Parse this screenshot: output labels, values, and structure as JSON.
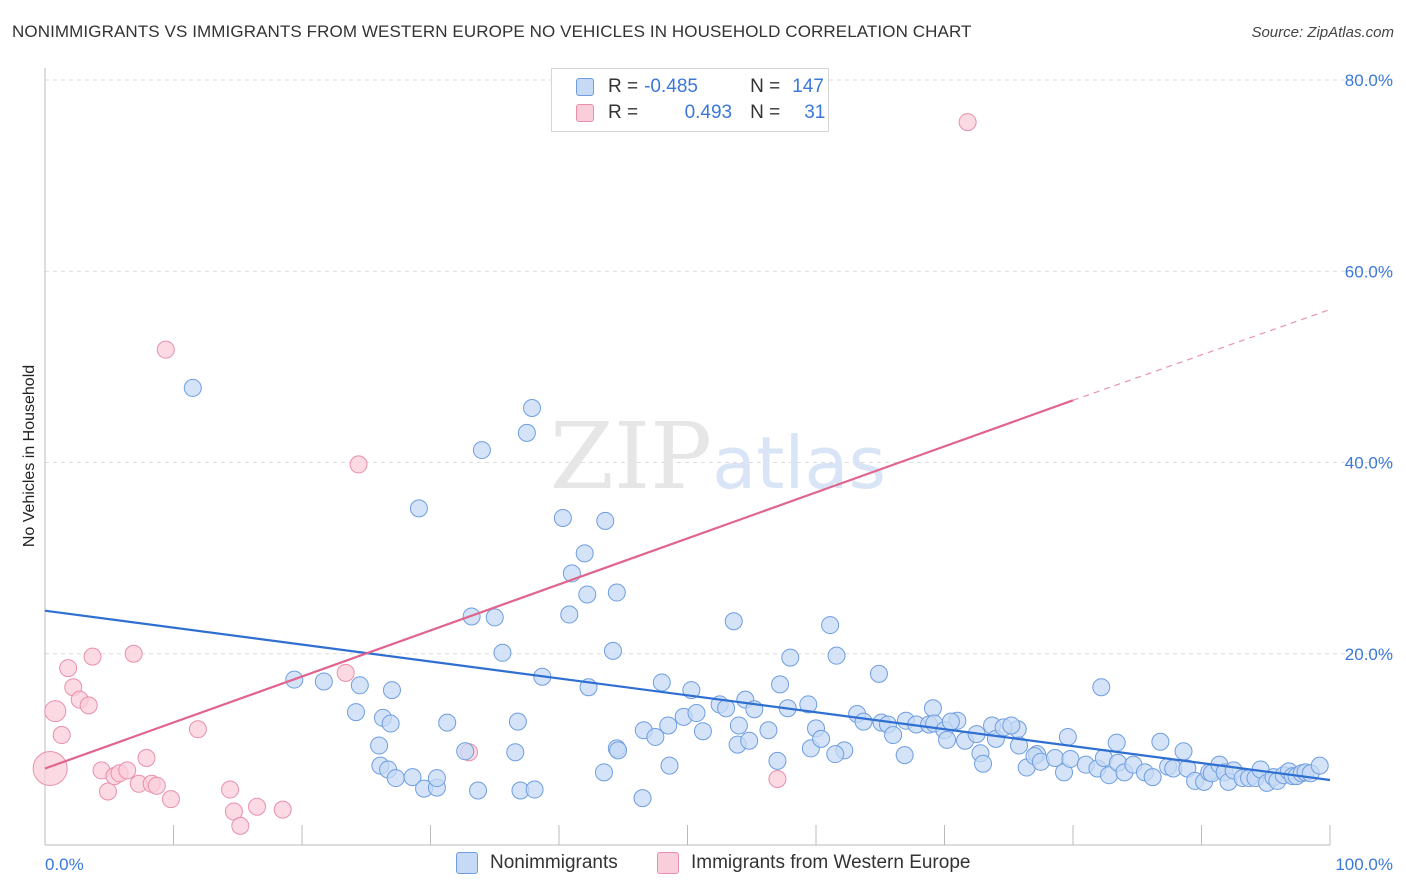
{
  "header": {
    "title": "NONIMMIGRANTS VS IMMIGRANTS FROM WESTERN EUROPE NO VEHICLES IN HOUSEHOLD CORRELATION CHART",
    "source": "Source: ZipAtlas.com"
  },
  "legend": {
    "series1": {
      "r_label": "R =",
      "r_value": "-0.485",
      "n_label": "N =",
      "n_value": "147"
    },
    "series2": {
      "r_label": "R =",
      "r_value": "0.493",
      "n_label": "N =",
      "n_value": "31"
    }
  },
  "watermark": {
    "part1": "ZIP",
    "part2": "atlas"
  },
  "colors": {
    "blue_fill": "#c6d9f5",
    "blue_stroke": "#6e9ee0",
    "blue_line": "#2f6fd1",
    "pink_fill": "#f9cdd9",
    "pink_stroke": "#e98fae",
    "pink_line": "#e0648e",
    "label_blue": "#3b78d8",
    "grid": "#dddddd"
  },
  "chart_data": {
    "type": "scatter",
    "title": "NONIMMIGRANTS VS IMMIGRANTS FROM WESTERN EUROPE NO VEHICLES IN HOUSEHOLD CORRELATION CHART",
    "xlabel": "",
    "ylabel": "No Vehicles in Household",
    "xlim": [
      0,
      100
    ],
    "ylim": [
      0,
      80
    ],
    "x_tick_labels": [
      "0.0%",
      "100.0%"
    ],
    "y_ticks": [
      20,
      40,
      60,
      80
    ],
    "y_tick_labels": [
      "20.0%",
      "40.0%",
      "60.0%",
      "80.0%"
    ],
    "grid": true,
    "series": [
      {
        "name": "Nonimmigrants",
        "r": -0.485,
        "n": 147,
        "trend": {
          "x0": 0,
          "y0": 24.5,
          "x1": 100,
          "y1": 6.8
        },
        "points": [
          [
            11.5,
            47.8
          ],
          [
            29.1,
            35.2
          ],
          [
            34.0,
            41.3
          ],
          [
            37.5,
            43.1
          ],
          [
            37.9,
            45.7
          ],
          [
            40.3,
            34.2
          ],
          [
            43.6,
            33.9
          ],
          [
            42.0,
            30.5
          ],
          [
            41.0,
            28.4
          ],
          [
            42.2,
            26.2
          ],
          [
            44.5,
            26.4
          ],
          [
            24.5,
            16.7
          ],
          [
            27.0,
            16.2
          ],
          [
            26.3,
            13.3
          ],
          [
            26.9,
            12.7
          ],
          [
            24.2,
            13.9
          ],
          [
            21.7,
            17.1
          ],
          [
            19.4,
            17.3
          ],
          [
            33.2,
            23.9
          ],
          [
            35.0,
            23.8
          ],
          [
            35.6,
            20.1
          ],
          [
            40.8,
            24.1
          ],
          [
            44.2,
            20.3
          ],
          [
            38.7,
            17.6
          ],
          [
            42.3,
            16.5
          ],
          [
            48.0,
            17.0
          ],
          [
            50.3,
            16.2
          ],
          [
            53.6,
            23.4
          ],
          [
            54.5,
            15.2
          ],
          [
            57.2,
            16.8
          ],
          [
            58.0,
            19.6
          ],
          [
            59.4,
            14.7
          ],
          [
            61.1,
            23.0
          ],
          [
            61.6,
            19.8
          ],
          [
            63.2,
            13.7
          ],
          [
            64.9,
            17.9
          ],
          [
            67.0,
            13.0
          ],
          [
            69.1,
            14.3
          ],
          [
            71.0,
            13.0
          ],
          [
            73.7,
            12.5
          ],
          [
            75.7,
            12.1
          ],
          [
            77.2,
            9.5
          ],
          [
            79.6,
            11.3
          ],
          [
            82.2,
            16.5
          ],
          [
            83.4,
            10.7
          ],
          [
            31.3,
            12.8
          ],
          [
            32.7,
            9.8
          ],
          [
            36.8,
            12.9
          ],
          [
            36.6,
            9.7
          ],
          [
            26.0,
            10.4
          ],
          [
            26.1,
            8.3
          ],
          [
            26.7,
            7.9
          ],
          [
            27.3,
            7.0
          ],
          [
            28.6,
            7.1
          ],
          [
            29.5,
            5.9
          ],
          [
            30.5,
            6.0
          ],
          [
            30.5,
            7.0
          ],
          [
            33.7,
            5.7
          ],
          [
            37.0,
            5.7
          ],
          [
            38.1,
            5.8
          ],
          [
            43.5,
            7.6
          ],
          [
            44.5,
            10.1
          ],
          [
            46.5,
            4.9
          ],
          [
            46.6,
            12.0
          ],
          [
            47.5,
            11.3
          ],
          [
            48.5,
            12.5
          ],
          [
            49.7,
            13.4
          ],
          [
            50.7,
            13.8
          ],
          [
            51.2,
            11.9
          ],
          [
            52.5,
            14.7
          ],
          [
            53.0,
            14.3
          ],
          [
            53.9,
            10.5
          ],
          [
            54.0,
            12.5
          ],
          [
            54.8,
            10.9
          ],
          [
            55.2,
            14.2
          ],
          [
            56.3,
            12.0
          ],
          [
            57.8,
            14.3
          ],
          [
            59.6,
            10.1
          ],
          [
            60.0,
            12.2
          ],
          [
            60.4,
            11.1
          ],
          [
            62.2,
            9.9
          ],
          [
            63.7,
            12.9
          ],
          [
            65.1,
            12.8
          ],
          [
            65.6,
            12.6
          ],
          [
            66.0,
            11.5
          ],
          [
            66.9,
            9.4
          ],
          [
            67.8,
            12.6
          ],
          [
            68.8,
            12.6
          ],
          [
            69.2,
            12.7
          ],
          [
            70.0,
            12.0
          ],
          [
            70.2,
            11.0
          ],
          [
            70.5,
            12.9
          ],
          [
            71.6,
            10.9
          ],
          [
            72.5,
            11.6
          ],
          [
            72.8,
            9.6
          ],
          [
            73.0,
            8.5
          ],
          [
            74.0,
            11.1
          ],
          [
            74.6,
            12.3
          ],
          [
            75.2,
            12.5
          ],
          [
            75.8,
            10.4
          ],
          [
            76.4,
            8.1
          ],
          [
            77.0,
            9.3
          ],
          [
            77.5,
            8.7
          ],
          [
            78.6,
            9.1
          ],
          [
            79.3,
            7.6
          ],
          [
            79.8,
            9.0
          ],
          [
            81.0,
            8.4
          ],
          [
            81.9,
            8.0
          ],
          [
            82.4,
            9.1
          ],
          [
            82.8,
            7.3
          ],
          [
            83.5,
            8.6
          ],
          [
            84.0,
            7.6
          ],
          [
            84.7,
            8.4
          ],
          [
            85.6,
            7.6
          ],
          [
            86.2,
            7.1
          ],
          [
            86.8,
            10.8
          ],
          [
            87.4,
            8.2
          ],
          [
            87.8,
            8.0
          ],
          [
            88.6,
            9.8
          ],
          [
            88.9,
            8.0
          ],
          [
            89.5,
            6.7
          ],
          [
            90.2,
            6.6
          ],
          [
            90.6,
            7.6
          ],
          [
            90.8,
            7.5
          ],
          [
            91.4,
            8.4
          ],
          [
            91.8,
            7.6
          ],
          [
            92.1,
            6.6
          ],
          [
            92.5,
            7.8
          ],
          [
            93.2,
            7.0
          ],
          [
            93.7,
            7.0
          ],
          [
            94.2,
            7.0
          ],
          [
            94.6,
            7.9
          ],
          [
            95.1,
            6.5
          ],
          [
            95.6,
            7.1
          ],
          [
            95.9,
            6.7
          ],
          [
            96.4,
            7.3
          ],
          [
            96.8,
            7.7
          ],
          [
            97.1,
            7.2
          ],
          [
            97.4,
            7.2
          ],
          [
            97.8,
            7.5
          ],
          [
            98.1,
            7.6
          ],
          [
            98.5,
            7.5
          ],
          [
            99.2,
            8.3
          ],
          [
            48.6,
            8.3
          ],
          [
            57.0,
            8.8
          ],
          [
            61.5,
            9.5
          ],
          [
            44.6,
            9.9
          ]
        ]
      },
      {
        "name": "Immigrants from Western Europe",
        "r": 0.493,
        "n": 31,
        "trend": {
          "x0": 0,
          "y0": 8.0,
          "x1": 80,
          "y1": 46.5
        },
        "trend_dashed": {
          "x0": 80,
          "y0": 46.5,
          "x1": 100,
          "y1": 56.0
        },
        "points": [
          [
            0.4,
            8.0
          ],
          [
            0.8,
            14.0
          ],
          [
            1.3,
            11.5
          ],
          [
            1.8,
            18.5
          ],
          [
            2.2,
            16.5
          ],
          [
            2.7,
            15.2
          ],
          [
            3.4,
            14.6
          ],
          [
            3.7,
            19.7
          ],
          [
            4.4,
            7.8
          ],
          [
            4.9,
            5.6
          ],
          [
            5.4,
            7.2
          ],
          [
            5.8,
            7.5
          ],
          [
            6.4,
            7.8
          ],
          [
            6.9,
            20.0
          ],
          [
            7.3,
            6.4
          ],
          [
            7.9,
            9.1
          ],
          [
            8.3,
            6.4
          ],
          [
            8.7,
            6.2
          ],
          [
            9.8,
            4.8
          ],
          [
            9.4,
            51.8
          ],
          [
            11.9,
            12.1
          ],
          [
            14.4,
            5.8
          ],
          [
            14.7,
            3.5
          ],
          [
            15.2,
            2.0
          ],
          [
            16.5,
            4.0
          ],
          [
            18.5,
            3.7
          ],
          [
            23.4,
            18.0
          ],
          [
            24.4,
            39.8
          ],
          [
            33.0,
            9.7
          ],
          [
            57.0,
            6.9
          ],
          [
            71.8,
            75.6
          ]
        ]
      }
    ]
  }
}
